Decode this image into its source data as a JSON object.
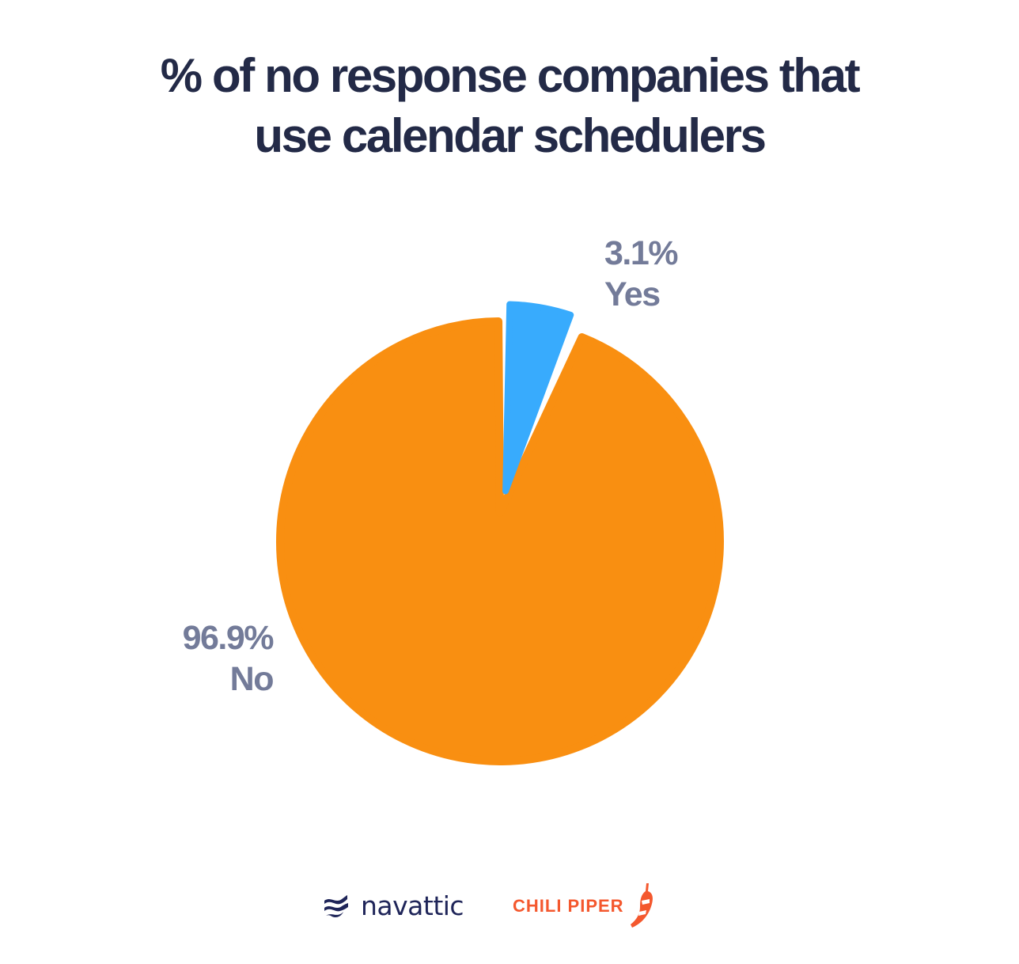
{
  "title": {
    "line1": "% of no response companies that",
    "line2": "use calendar schedulers"
  },
  "labels": {
    "yes": {
      "value": "3.1%",
      "name": "Yes"
    },
    "no": {
      "value": "96.9%",
      "name": "No"
    }
  },
  "colors": {
    "yes": "#38abfd",
    "no": "#f98f11",
    "title": "#232a47",
    "label": "#737b99",
    "navattic": "#1f2559",
    "chili_piper": "#f4582e"
  },
  "logos": {
    "navattic": "navattic",
    "chili_piper": "CHILI PIPER"
  },
  "chart_data": {
    "type": "pie",
    "title": "% of no response companies that use calendar schedulers",
    "categories": [
      "Yes",
      "No"
    ],
    "values": [
      3.1,
      96.9
    ],
    "unit": "%",
    "colors": [
      "#38abfd",
      "#f98f11"
    ],
    "exploded": [
      "Yes"
    ],
    "data_labels": [
      "3.1% Yes",
      "96.9% No"
    ],
    "legend": "none (inline labels)"
  }
}
